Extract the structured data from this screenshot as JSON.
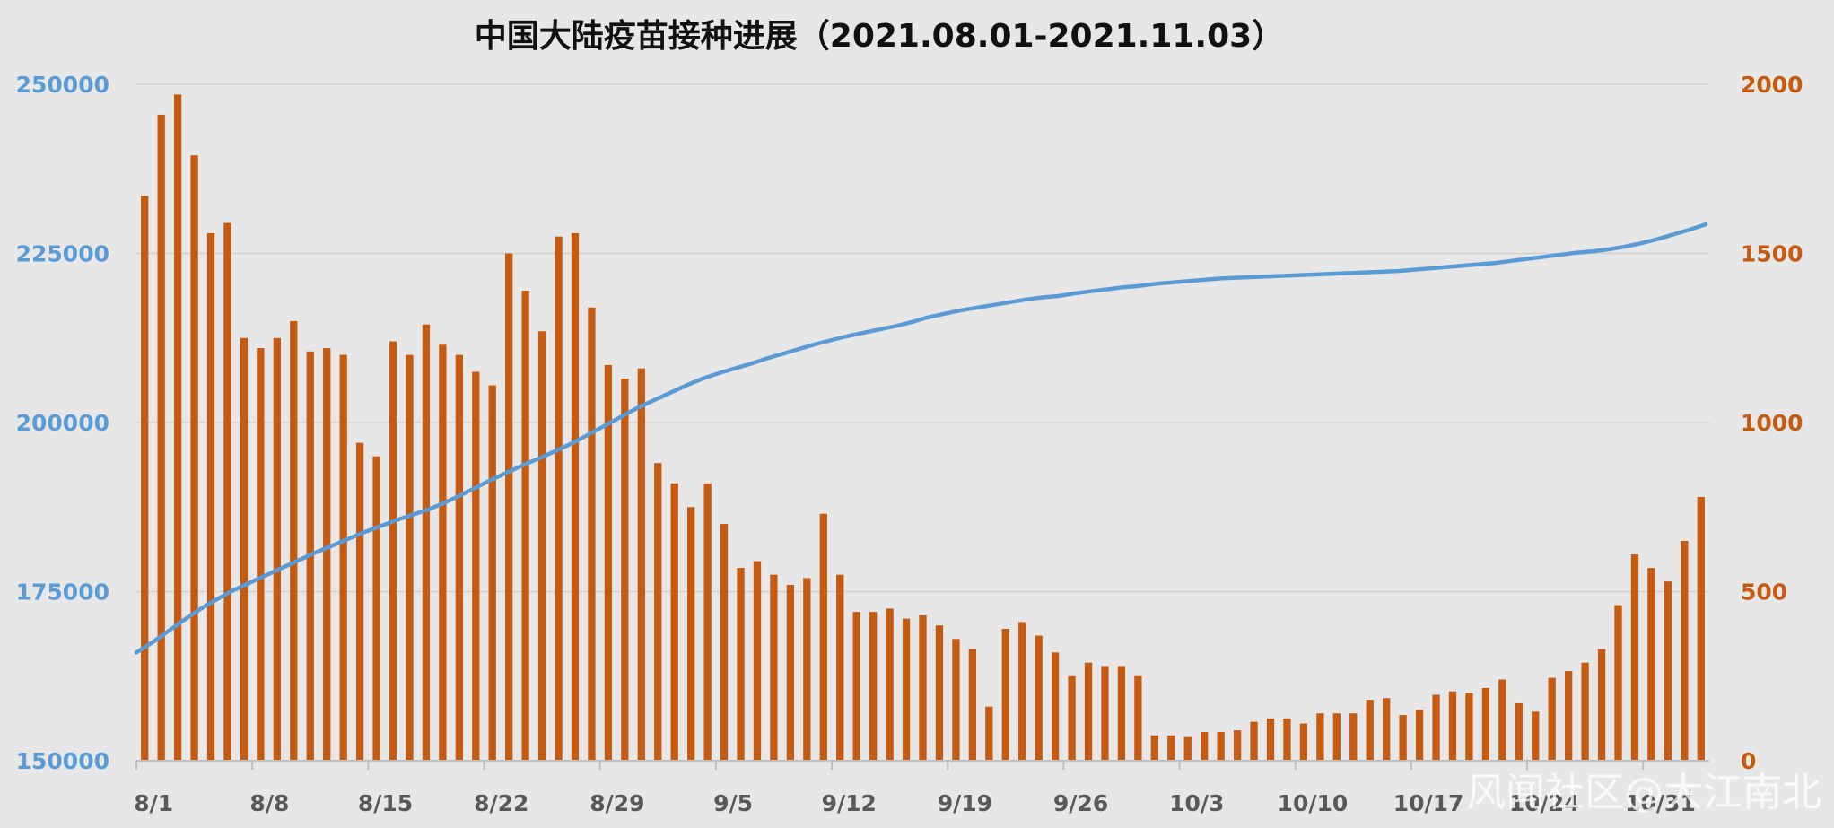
{
  "chart_data": {
    "type": "bar",
    "title": "中国大陆疫苗接种进展（2021.08.01-2021.11.03）",
    "xlabel": "",
    "ylabel_left": "",
    "ylabel_right": "",
    "colors": {
      "bars": "#c55a11",
      "line": "#5b9bd5",
      "grid": "#d0d0d0",
      "background": "#e7e7e7"
    },
    "grid": true,
    "x_tick_labels": [
      "8/1",
      "8/8",
      "8/15",
      "8/22",
      "8/29",
      "9/5",
      "9/12",
      "9/19",
      "9/26",
      "10/3",
      "10/10",
      "10/17",
      "10/24",
      "10/31"
    ],
    "ylim_left": [
      150000,
      250000
    ],
    "yticks_left": [
      "150000",
      "175000",
      "200000",
      "225000",
      "250000"
    ],
    "ylim_right": [
      0,
      2000
    ],
    "yticks_right": [
      "0",
      "500",
      "1000",
      "1500",
      "2000"
    ],
    "series": [
      {
        "axis": "right",
        "type": "bar",
        "values": [
          1670,
          1910,
          1970,
          1790,
          1560,
          1590,
          1250,
          1220,
          1250,
          1300,
          1210,
          1220,
          1200,
          940,
          900,
          1240,
          1200,
          1290,
          1230,
          1200,
          1150,
          1110,
          1500,
          1390,
          1270,
          1550,
          1560,
          1340,
          1170,
          1130,
          1160,
          880,
          820,
          750,
          820,
          700,
          570,
          590,
          550,
          520,
          540,
          730,
          550,
          440,
          440,
          450,
          420,
          430,
          400,
          360,
          330,
          160,
          390,
          410,
          370,
          320,
          250,
          290,
          280,
          280,
          250,
          75,
          75,
          70,
          85,
          85,
          90,
          115,
          125,
          125,
          110,
          140,
          140,
          140,
          180,
          185,
          135,
          150,
          195,
          205,
          200,
          215,
          240,
          170,
          145,
          245,
          265,
          290,
          330,
          460,
          610,
          570,
          530,
          650,
          780
        ]
      },
      {
        "axis": "left",
        "type": "line",
        "start": 166000,
        "values": [
          166000,
          167500,
          169200,
          170900,
          172500,
          173900,
          175200,
          176300,
          177400,
          178500,
          179600,
          180700,
          181700,
          182700,
          183700,
          184600,
          185500,
          186300,
          187100,
          188100,
          189200,
          190400,
          191600,
          192700,
          193800,
          194800,
          195900,
          197000,
          198300,
          199600,
          200900,
          202200,
          203300,
          204400,
          205500,
          206500,
          207300,
          208000,
          208700,
          209500,
          210200,
          210900,
          211600,
          212200,
          212800,
          213300,
          213800,
          214300,
          214900,
          215600,
          216100,
          216600,
          217000,
          217400,
          217800,
          218200,
          218500,
          218700,
          219100,
          219400,
          219700,
          220000,
          220200,
          220500,
          220700,
          220900,
          221100,
          221300,
          221400,
          221500,
          221600,
          221700,
          221800,
          221900,
          222000,
          222100,
          222200,
          222300,
          222400,
          222600,
          222800,
          223000,
          223200,
          223400,
          223600,
          223900,
          224200,
          224500,
          224800,
          225100,
          225300,
          225600,
          226000,
          226500,
          227100,
          227800,
          228500,
          229300
        ]
      }
    ]
  },
  "watermark": "风闻社区@大江南北"
}
